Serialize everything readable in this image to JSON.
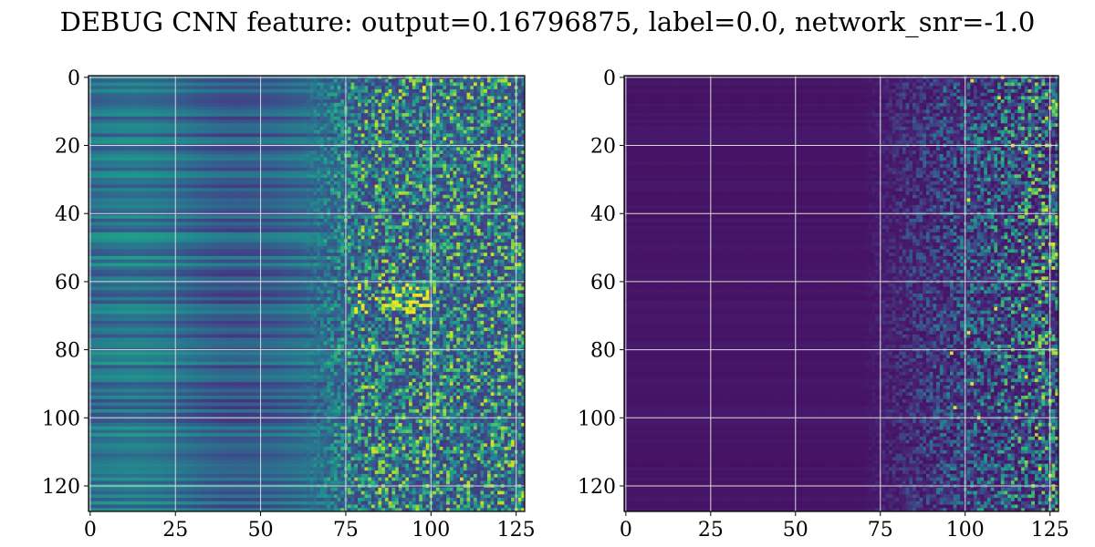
{
  "figure": {
    "title": "DEBUG CNN feature: output=0.16796875, label=0.0, network_snr=-1.0",
    "colormap": "viridis",
    "grid_color": "#d9d9d9"
  },
  "chart_data": [
    {
      "type": "heatmap",
      "title": "",
      "xlabel": "",
      "ylabel": "",
      "rows": 128,
      "cols": 128,
      "xlim": [
        -0.5,
        127.5
      ],
      "ylim": [
        127.5,
        -0.5
      ],
      "x_ticks": [
        0,
        25,
        50,
        75,
        100,
        125
      ],
      "y_ticks": [
        0,
        20,
        40,
        60,
        80,
        100,
        120
      ],
      "grid": true,
      "pattern": "smooth horizontal bands on columns 0-70, noisy speckled texture on columns 70-127, brightest speckles near rows 62-68 at columns 80-100"
    },
    {
      "type": "heatmap",
      "title": "",
      "xlabel": "",
      "ylabel": "",
      "rows": 128,
      "cols": 128,
      "xlim": [
        -0.5,
        127.5
      ],
      "ylim": [
        127.5,
        -0.5
      ],
      "x_ticks": [
        0,
        25,
        50,
        75,
        100,
        125
      ],
      "y_ticks": [
        0,
        20,
        40,
        60,
        80,
        100,
        120
      ],
      "grid": true,
      "pattern": "mostly dark purple on columns 0-75, increasingly bright speckled green/yellow on columns 85-127"
    }
  ]
}
